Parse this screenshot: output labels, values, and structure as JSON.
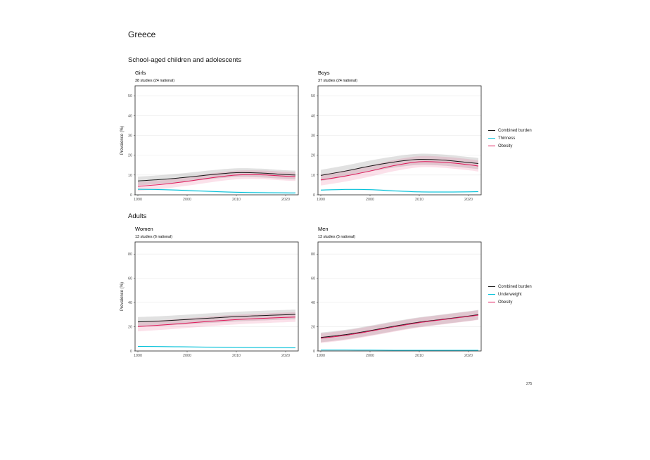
{
  "page": {
    "country": "Greece",
    "page_number": "275"
  },
  "sections": {
    "children": "School-aged children and adolescents",
    "adults": "Adults"
  },
  "legends": {
    "children": [
      {
        "label": "Combined burden",
        "color": "#1a1a1a"
      },
      {
        "label": "Thinness",
        "color": "#00c0d8"
      },
      {
        "label": "Obesity",
        "color": "#e0185a"
      }
    ],
    "adults": [
      {
        "label": "Combined burden",
        "color": "#1a1a1a"
      },
      {
        "label": "Underweight",
        "color": "#00c0d8"
      },
      {
        "label": "Obesity",
        "color": "#e0185a"
      }
    ]
  },
  "chart_data": [
    {
      "type": "line",
      "title": "Girls",
      "subtitle": "38 studies (24 national)",
      "ylabel": "Prevalence (%)",
      "xlim": [
        1990,
        2022
      ],
      "ylim": [
        0,
        55
      ],
      "xticks": [
        1990,
        2000,
        2010,
        2020
      ],
      "yticks": [
        0,
        10,
        20,
        30,
        40,
        50
      ],
      "x": [
        1990,
        1995,
        2000,
        2005,
        2010,
        2015,
        2020,
        2022
      ],
      "series": [
        {
          "name": "Combined burden",
          "color": "#1a1a1a",
          "values": [
            7,
            7.8,
            8.9,
            10.2,
            11.2,
            11,
            10.2,
            10
          ],
          "ci": 2.2
        },
        {
          "name": "Thinness",
          "color": "#00c0d8",
          "values": [
            2.8,
            2.6,
            2.2,
            1.7,
            1.3,
            1.1,
            1,
            1
          ],
          "ci": 0.5
        },
        {
          "name": "Obesity",
          "color": "#e0185a",
          "values": [
            4.3,
            5.3,
            6.8,
            8.6,
            10,
            10.1,
            9.4,
            9.2
          ],
          "ci": 2.2
        }
      ]
    },
    {
      "type": "line",
      "title": "Boys",
      "subtitle": "37 studies (24 national)",
      "ylabel": "",
      "xlim": [
        1990,
        2022
      ],
      "ylim": [
        0,
        55
      ],
      "xticks": [
        1990,
        2000,
        2010,
        2020
      ],
      "yticks": [
        0,
        10,
        20,
        30,
        40,
        50
      ],
      "x": [
        1990,
        1995,
        2000,
        2005,
        2010,
        2015,
        2020,
        2022
      ],
      "series": [
        {
          "name": "Combined burden",
          "color": "#1a1a1a",
          "values": [
            9.8,
            12,
            14.5,
            16.6,
            17.9,
            17.5,
            16.3,
            15.8
          ],
          "ci": 2.8
        },
        {
          "name": "Thinness",
          "color": "#00c0d8",
          "values": [
            2.4,
            2.7,
            2.6,
            2,
            1.5,
            1.4,
            1.5,
            1.6
          ],
          "ci": 0.5
        },
        {
          "name": "Obesity",
          "color": "#e0185a",
          "values": [
            7.5,
            9.5,
            12,
            14.8,
            16.7,
            16.4,
            15.2,
            14.5
          ],
          "ci": 2.8
        }
      ]
    },
    {
      "type": "line",
      "title": "Women",
      "subtitle": "13 studies (6 national)",
      "ylabel": "Prevalence (%)",
      "xlim": [
        1990,
        2022
      ],
      "ylim": [
        0,
        90
      ],
      "xticks": [
        1990,
        2000,
        2010,
        2020
      ],
      "yticks": [
        0,
        20,
        40,
        60,
        80
      ],
      "x": [
        1990,
        1995,
        2000,
        2005,
        2010,
        2015,
        2020,
        2022
      ],
      "series": [
        {
          "name": "Combined burden",
          "color": "#1a1a1a",
          "values": [
            24,
            24.8,
            26,
            27.2,
            28.4,
            29.2,
            29.9,
            30.2
          ],
          "ci": 4
        },
        {
          "name": "Underweight",
          "color": "#00c0d8",
          "values": [
            3.8,
            3.6,
            3.4,
            3.1,
            2.9,
            2.8,
            2.7,
            2.6
          ],
          "ci": 0.6
        },
        {
          "name": "Obesity",
          "color": "#e0185a",
          "values": [
            20.2,
            21.5,
            23,
            24.6,
            25.9,
            26.9,
            27.7,
            28
          ],
          "ci": 4
        }
      ]
    },
    {
      "type": "line",
      "title": "Men",
      "subtitle": "13 studies (5 national)",
      "ylabel": "",
      "xlim": [
        1990,
        2022
      ],
      "ylim": [
        0,
        90
      ],
      "xticks": [
        1990,
        2000,
        2010,
        2020
      ],
      "yticks": [
        0,
        20,
        40,
        60,
        80
      ],
      "x": [
        1990,
        1995,
        2000,
        2005,
        2010,
        2015,
        2020,
        2022
      ],
      "series": [
        {
          "name": "Combined burden",
          "color": "#1a1a1a",
          "values": [
            11.2,
            13.5,
            16.8,
            20.5,
            23.8,
            26.3,
            28.8,
            30
          ],
          "ci": 4
        },
        {
          "name": "Underweight",
          "color": "#00c0d8",
          "values": [
            0.8,
            0.8,
            0.7,
            0.6,
            0.6,
            0.6,
            0.6,
            0.6
          ],
          "ci": 0.3
        },
        {
          "name": "Obesity",
          "color": "#e0185a",
          "values": [
            10.5,
            12.9,
            16.3,
            20,
            23.4,
            26,
            28.5,
            29.6
          ],
          "ci": 4
        }
      ]
    }
  ]
}
